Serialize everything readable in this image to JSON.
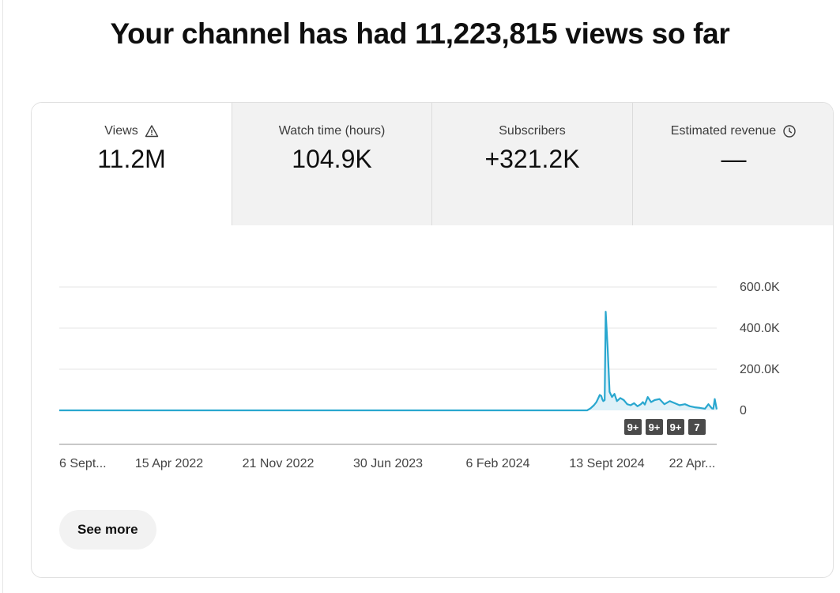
{
  "headline": "Your channel has had 11,223,815 views so far",
  "tabs": [
    {
      "label": "Views",
      "value": "11.2M",
      "icon": "warning-icon"
    },
    {
      "label": "Watch time (hours)",
      "value": "104.9K"
    },
    {
      "label": "Subscribers",
      "value": "+321.2K"
    },
    {
      "label": "Estimated revenue",
      "value": "—",
      "icon": "clock-icon"
    }
  ],
  "see_more_label": "See more",
  "colors": {
    "line": "#29a7cf",
    "fill": "#dff1f8",
    "badge": "#4a4a4a"
  },
  "chart_data": {
    "type": "line",
    "y_ticks": [
      "600.0K",
      "400.0K",
      "200.0K",
      "0"
    ],
    "ylim": [
      0,
      600000
    ],
    "x_labels": [
      "6 Sept...",
      "15 Apr 2022",
      "21 Nov 2022",
      "30 Jun 2023",
      "6 Feb 2024",
      "13 Sept 2024",
      "22 Apr..."
    ],
    "annotation_badges": [
      "9+",
      "9+",
      "9+",
      "7"
    ],
    "grid": true,
    "series": [
      {
        "x": [
          "2021-09-06",
          "2022-04-15",
          "2022-11-21",
          "2023-06-30",
          "2024-02-06",
          "2024-08-20",
          "2024-08-27",
          "2024-09-03",
          "2024-09-08",
          "2024-09-12",
          "2024-09-15",
          "2024-09-18",
          "2024-09-20",
          "2024-09-22",
          "2024-09-25",
          "2024-09-27",
          "2024-10-01",
          "2024-10-05",
          "2024-10-10",
          "2024-10-15",
          "2024-10-20",
          "2024-10-27",
          "2024-11-03",
          "2024-11-10",
          "2024-11-17",
          "2024-11-24",
          "2024-12-01",
          "2024-12-08",
          "2024-12-12",
          "2024-12-16",
          "2024-12-22",
          "2024-12-29",
          "2025-01-05",
          "2025-01-15",
          "2025-01-25",
          "2025-02-05",
          "2025-02-15",
          "2025-02-25",
          "2025-03-08",
          "2025-03-18",
          "2025-03-28",
          "2025-04-08",
          "2025-04-18",
          "2025-04-25",
          "2025-05-02",
          "2025-05-05",
          "2025-05-08",
          "2025-05-12"
        ],
        "values": [
          0,
          0,
          0,
          0,
          0,
          0,
          10000,
          25000,
          40000,
          60000,
          75000,
          70000,
          55000,
          45000,
          50000,
          480000,
          300000,
          90000,
          65000,
          80000,
          45000,
          60000,
          50000,
          30000,
          25000,
          35000,
          20000,
          30000,
          40000,
          28000,
          65000,
          40000,
          50000,
          55000,
          30000,
          45000,
          35000,
          25000,
          30000,
          20000,
          15000,
          12000,
          8000,
          30000,
          10000,
          8000,
          55000,
          5000
        ]
      }
    ]
  }
}
